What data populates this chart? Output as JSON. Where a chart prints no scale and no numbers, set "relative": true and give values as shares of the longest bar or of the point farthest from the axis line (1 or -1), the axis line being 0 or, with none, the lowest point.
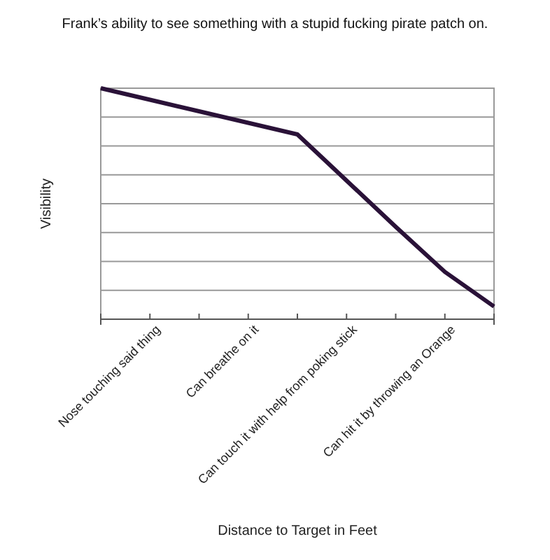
{
  "chart_data": {
    "type": "line",
    "title": "Frank’s ability to see something with a stupid fucking pirate patch on.",
    "xlabel": "Distance to Target in Feet",
    "ylabel": "Visibility",
    "relative": true,
    "grid": "y",
    "categories": [
      null,
      "Nose touching said thing",
      null,
      "Can breathe on it",
      null,
      "Can touch it with help from poking stick",
      null,
      "Can hit it by throwing an Orange",
      null
    ],
    "series": [
      {
        "color": "#2a1238",
        "values": [
          1,
          0.95,
          0.9,
          0.85,
          0.8,
          0.6,
          0.4,
          0.205,
          0.055
        ]
      }
    ]
  }
}
